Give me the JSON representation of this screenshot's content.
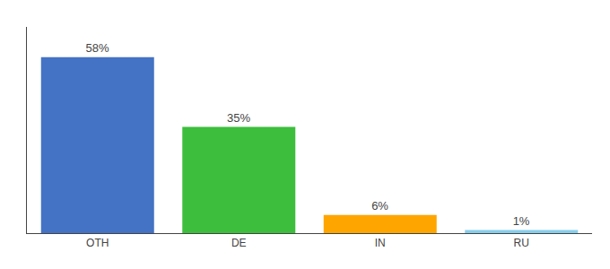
{
  "chart_data": {
    "type": "bar",
    "categories": [
      "OTH",
      "DE",
      "IN",
      "RU"
    ],
    "values": [
      58,
      35,
      6,
      1
    ],
    "value_labels": [
      "58%",
      "35%",
      "6%",
      "1%"
    ],
    "colors": [
      "#4472C4",
      "#3DBE3D",
      "#FFA500",
      "#87CEEB"
    ],
    "ylim": [
      0,
      68
    ],
    "data_labels": true,
    "tick_labels": "x",
    "grid": false
  }
}
